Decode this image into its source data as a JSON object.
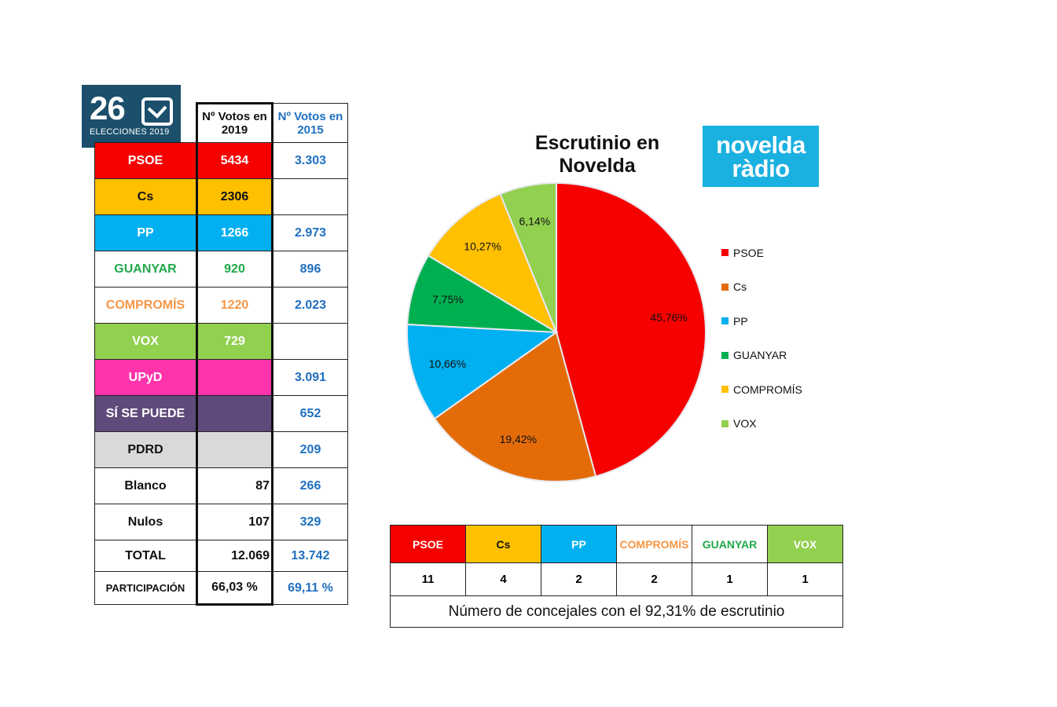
{
  "colors": {
    "PSOE": "#f70000",
    "Cs": "#e36c09",
    "Cs_table": "#ffc000",
    "PP": "#00b0f0",
    "GUANYAR": "#00b050",
    "GUANYAR_text": "#21a84a",
    "COMPROMIS": "#ffc000",
    "COMPROMIS_text": "#f79646",
    "VOX": "#92d050",
    "UPyD": "#ff33aa",
    "SISEPUEDE": "#604a7b",
    "PDRD": "#d9d9d9",
    "blue_text": "#1f6fc0"
  },
  "badge": {
    "number": "26",
    "caption": "ELECCIONES 2019"
  },
  "radio_logo": {
    "line1": "novelda",
    "line2": "ràdio"
  },
  "table": {
    "header": {
      "col2019": "Nº Votos en 2019",
      "col2015": "Nº Votos en 2015"
    },
    "rows": [
      {
        "label": "PSOE",
        "v2019": "5434",
        "v2015": "3.303"
      },
      {
        "label": "Cs",
        "v2019": "2306",
        "v2015": ""
      },
      {
        "label": "PP",
        "v2019": "1266",
        "v2015": "2.973"
      },
      {
        "label": "GUANYAR",
        "v2019": "920",
        "v2015": "896"
      },
      {
        "label": "COMPROMÍS",
        "v2019": "1220",
        "v2015": "2.023"
      },
      {
        "label": "VOX",
        "v2019": "729",
        "v2015": ""
      },
      {
        "label": "UPyD",
        "v2019": "",
        "v2015": "3.091"
      },
      {
        "label": "SÍ SE PUEDE",
        "v2019": "",
        "v2015": "652"
      },
      {
        "label": "PDRD",
        "v2019": "",
        "v2015": "209"
      },
      {
        "label": "Blanco",
        "v2019": "87",
        "v2015": "266"
      },
      {
        "label": "Nulos",
        "v2019": "107",
        "v2015": "329"
      },
      {
        "label": "TOTAL",
        "v2019": "12.069",
        "v2015": "13.742"
      },
      {
        "label": "PARTICIPACIÓN",
        "v2019": "66,03 %",
        "v2015": "69,11 %"
      }
    ]
  },
  "chart_data": {
    "type": "pie",
    "title": "Escrutinio en Novelda",
    "legend_position": "right",
    "slices": [
      {
        "name": "PSOE",
        "value": 45.76,
        "label": "45,76%",
        "color": "#f70000"
      },
      {
        "name": "Cs",
        "value": 19.42,
        "label": "19,42%",
        "color": "#e36c09"
      },
      {
        "name": "PP",
        "value": 10.66,
        "label": "10,66%",
        "color": "#00b0f0"
      },
      {
        "name": "GUANYAR",
        "value": 7.75,
        "label": "7,75%",
        "color": "#00b050"
      },
      {
        "name": "COMPROMÍS",
        "value": 10.27,
        "label": "10,27%",
        "color": "#ffc000"
      },
      {
        "name": "VOX",
        "value": 6.14,
        "label": "6,14%",
        "color": "#92d050"
      }
    ]
  },
  "seats": {
    "parties": [
      {
        "label": "PSOE",
        "seats": "11"
      },
      {
        "label": "Cs",
        "seats": "4"
      },
      {
        "label": "PP",
        "seats": "2"
      },
      {
        "label": "COMPROMÍS",
        "seats": "2"
      },
      {
        "label": "GUANYAR",
        "seats": "1"
      },
      {
        "label": "VOX",
        "seats": "1"
      }
    ],
    "note": "Número de concejales con el 92,31% de escrutinio"
  }
}
